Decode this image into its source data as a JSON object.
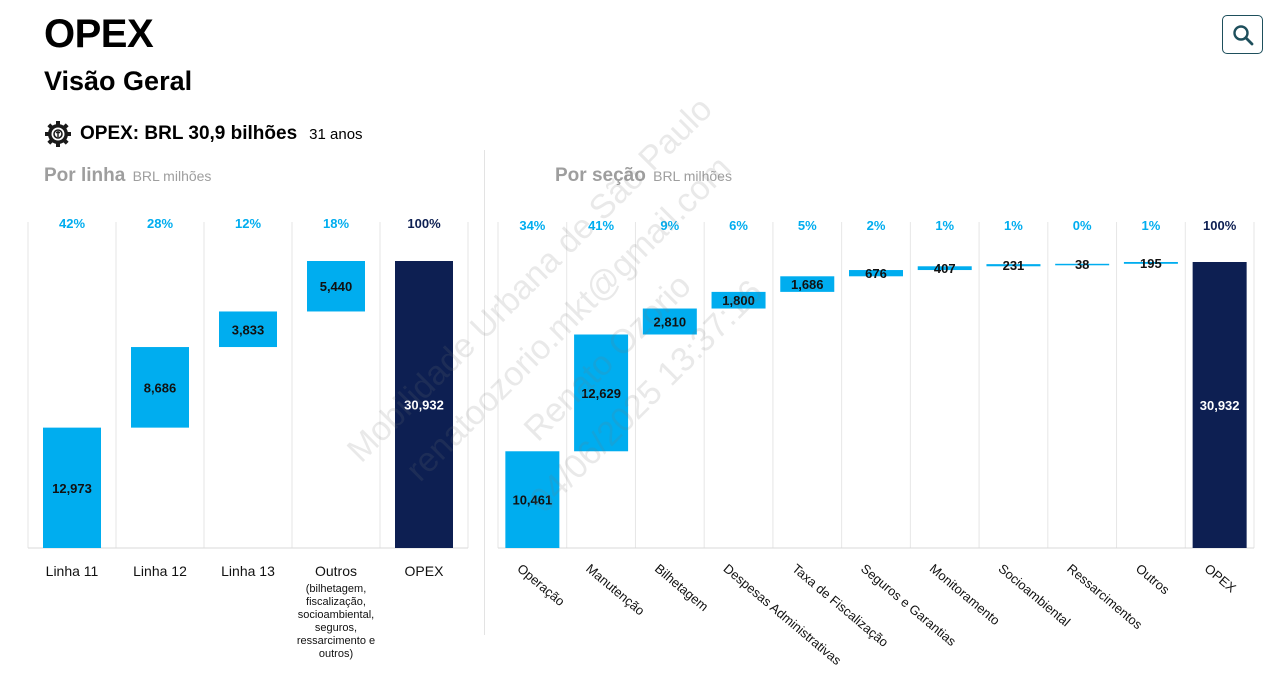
{
  "header": {
    "title": "OPEX",
    "subtitle": "Visão Geral",
    "summary_label": "OPEX: BRL 30,9 bilhões",
    "summary_period": "31 anos"
  },
  "search": {
    "icon": "search-icon"
  },
  "watermark": {
    "lines": [
      "Mobilidade Urbana de São Paulo",
      "renatoozorio.mkt@gmail.com",
      "Renato Ozorio",
      "04/06/2025 13:37:16"
    ]
  },
  "colors": {
    "bar": "#00adef",
    "total": "#0d1f52",
    "pct": "#00adef",
    "accent_border": "#1e4f5c"
  },
  "chart_data": [
    {
      "type": "bar",
      "subtype": "waterfall",
      "title": "Por linha",
      "unit": "BRL milhões",
      "ylim": [
        0,
        30932
      ],
      "categories": [
        "Linha 11",
        "Linha 12",
        "Linha 13",
        "Outros",
        "OPEX"
      ],
      "category_notes": [
        "",
        "",
        "",
        "(bilhetagem, fiscalização, socioambiental, seguros, ressarcimento e outros)",
        ""
      ],
      "values": [
        12973,
        8686,
        3833,
        5440,
        30932
      ],
      "value_labels": [
        "12,973",
        "8,686",
        "3,833",
        "5,440",
        "30,932"
      ],
      "percent_labels": [
        "42%",
        "28%",
        "12%",
        "18%",
        "100%"
      ],
      "total_index": 4
    },
    {
      "type": "bar",
      "subtype": "waterfall",
      "title": "Por seção",
      "unit": "BRL milhões",
      "ylim": [
        0,
        30932
      ],
      "categories": [
        "Operação",
        "Manutenção",
        "Bilhetagem",
        "Despesas Administrativas",
        "Taxa de Fiscalização",
        "Seguros e Garantias",
        "Monitoramento",
        "Socioambiental",
        "Ressarcimentos",
        "Outros",
        "OPEX"
      ],
      "values": [
        10461,
        12629,
        2810,
        1800,
        1686,
        676,
        407,
        231,
        38,
        195,
        30932
      ],
      "value_labels": [
        "10,461",
        "12,629",
        "2,810",
        "1,800",
        "1,686",
        "676",
        "407",
        "231",
        "38",
        "195",
        "30,932"
      ],
      "percent_labels": [
        "34%",
        "41%",
        "9%",
        "6%",
        "5%",
        "2%",
        "1%",
        "1%",
        "0%",
        "1%",
        "100%"
      ],
      "total_index": 10
    }
  ]
}
